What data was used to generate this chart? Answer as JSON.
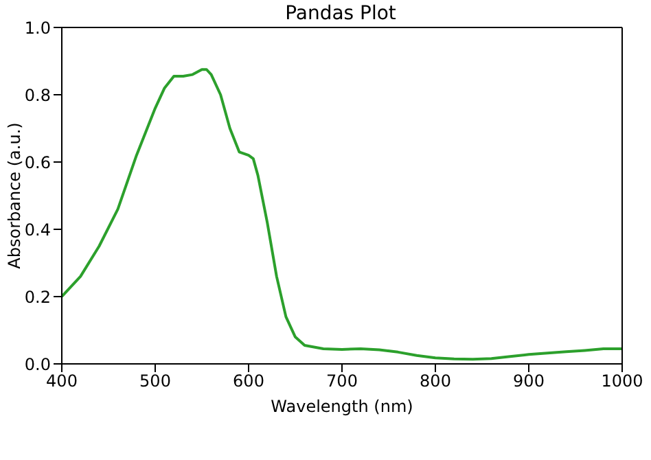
{
  "chart_data": {
    "type": "line",
    "title": "Pandas Plot",
    "xlabel": "Wavelength (nm)",
    "ylabel": "Absorbance (a.u.)",
    "x": [
      400,
      420,
      440,
      460,
      480,
      500,
      510,
      520,
      530,
      540,
      550,
      555,
      560,
      570,
      580,
      590,
      600,
      605,
      610,
      620,
      630,
      640,
      650,
      660,
      680,
      700,
      720,
      740,
      760,
      780,
      800,
      820,
      840,
      860,
      880,
      900,
      920,
      940,
      960,
      980,
      1000
    ],
    "series": [
      {
        "color": "#2ca02c",
        "values": [
          0.2,
          0.26,
          0.35,
          0.46,
          0.62,
          0.76,
          0.82,
          0.855,
          0.855,
          0.86,
          0.875,
          0.875,
          0.86,
          0.8,
          0.7,
          0.63,
          0.62,
          0.61,
          0.56,
          0.42,
          0.26,
          0.14,
          0.08,
          0.055,
          0.045,
          0.043,
          0.045,
          0.042,
          0.035,
          0.025,
          0.018,
          0.015,
          0.014,
          0.016,
          0.022,
          0.028,
          0.032,
          0.036,
          0.04,
          0.045,
          0.045
        ]
      }
    ],
    "xlim": [
      400,
      1000
    ],
    "xticks": [
      400,
      500,
      600,
      700,
      800,
      900,
      1000
    ],
    "ylim": [
      0,
      1
    ],
    "yticks": [
      {
        "value": 0,
        "label": "0.0"
      },
      0.2,
      0.4,
      0.6,
      0.8,
      {
        "value": 1,
        "label": "1.0"
      }
    ],
    "grid": false,
    "legend": false,
    "marker": "none",
    "line_style": "solid"
  }
}
